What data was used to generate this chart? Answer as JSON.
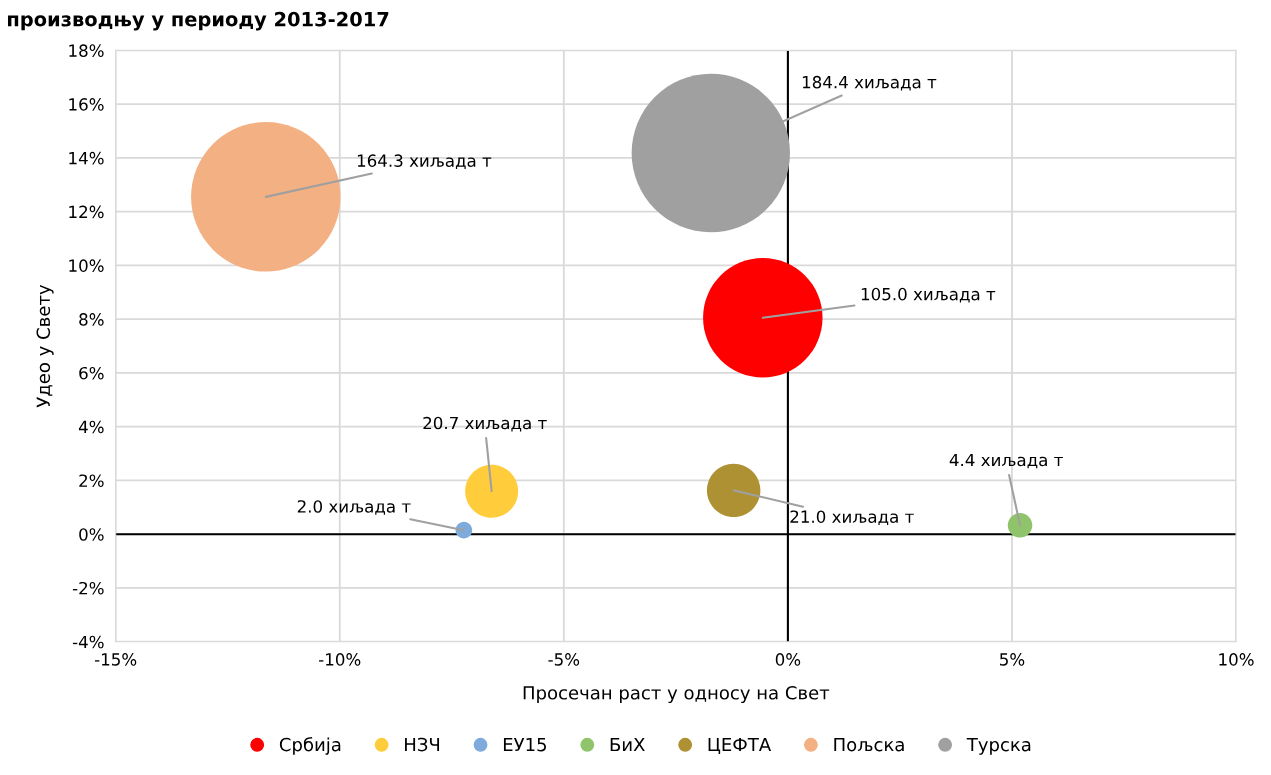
{
  "chart_data": {
    "type": "bubble",
    "title": "производњу у периоду 2013-2017",
    "xlabel": "Просечан раст у односу на Свет",
    "ylabel": "Удео у Свету",
    "series": [
      {
        "name": "Србија",
        "color": "#ff0000",
        "x": [
          -0.56
        ],
        "values": [
          8.05
        ],
        "sizes": [
          0.569
        ]
      },
      {
        "name": "НЗЧ",
        "color": "#ffcd3c",
        "x": [
          -6.61
        ],
        "values": [
          1.6
        ],
        "sizes": [
          0.112
        ]
      },
      {
        "name": "ЕУ15",
        "color": "#7fabdc",
        "x": [
          -7.23
        ],
        "values": [
          0.15
        ],
        "sizes": [
          0.011
        ]
      },
      {
        "name": "БиХ",
        "color": "#8fc46a",
        "x": [
          5.18
        ],
        "values": [
          0.33
        ],
        "sizes": [
          0.024
        ]
      },
      {
        "name": "ЦЕФТА",
        "color": "#ae9133",
        "x": [
          -1.21
        ],
        "values": [
          1.63
        ],
        "sizes": [
          0.114
        ]
      },
      {
        "name": "Пољска",
        "color": "#f3b083",
        "x": [
          -11.65
        ],
        "values": [
          12.55
        ],
        "sizes": [
          0.891
        ]
      },
      {
        "name": "Турска",
        "color": "#a0a0a0",
        "x": [
          -1.72
        ],
        "values": [
          14.18
        ],
        "sizes": [
          1
        ]
      }
    ],
    "annotations": [
      {
        "text": "105.0 хиљада т",
        "x": -0.56,
        "y": 8.05
      },
      {
        "text": "20.7 хиљада т",
        "x": -6.61,
        "y": 1.6
      },
      {
        "text": "2.0 хиљада т",
        "x": -7.23,
        "y": 0.15
      },
      {
        "text": "4.4 хиљада т",
        "x": 5.18,
        "y": 0.33
      },
      {
        "text": "21.0 хиљада т",
        "x": -1.21,
        "y": 1.63
      },
      {
        "text": "164.3 хиљада т",
        "x": -11.65,
        "y": 12.55
      },
      {
        "text": "184.4 хиљада т",
        "x": -1.72,
        "y": 14.18
      }
    ],
    "xlim": [
      -15,
      10
    ],
    "xticks": [
      {
        "value": -15,
        "label": "-15%"
      },
      {
        "value": -10,
        "label": "-10%"
      },
      {
        "value": -5,
        "label": "-5%"
      },
      {
        "value": 0,
        "label": "0%"
      },
      {
        "value": 5,
        "label": "5%"
      },
      {
        "value": 10,
        "label": "10%"
      }
    ],
    "ylim": [
      -4,
      18
    ],
    "yticks": [
      {
        "value": -4,
        "label": "-4%"
      },
      {
        "value": -2,
        "label": "-2%"
      },
      {
        "value": 0,
        "label": "0%"
      },
      {
        "value": 2,
        "label": "2%"
      },
      {
        "value": 4,
        "label": "4%"
      },
      {
        "value": 6,
        "label": "6%"
      },
      {
        "value": 8,
        "label": "8%"
      },
      {
        "value": 10,
        "label": "10%"
      },
      {
        "value": 12,
        "label": "12%"
      },
      {
        "value": 14,
        "label": "14%"
      },
      {
        "value": 16,
        "label": "16%"
      },
      {
        "value": 18,
        "label": "18%"
      }
    ],
    "grid": true,
    "legend": "bottom",
    "marker": "circle"
  }
}
